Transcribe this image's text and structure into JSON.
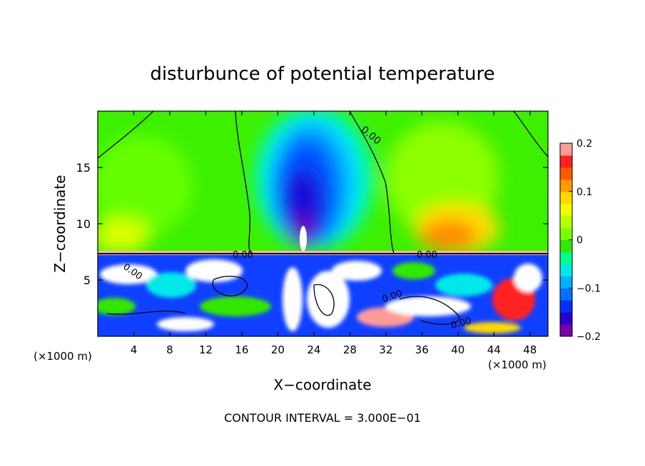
{
  "chart_data": {
    "type": "heatmap",
    "title": "disturbunce of potential temperature",
    "xlabel": "X−coordinate",
    "ylabel": "Z−coordinate",
    "x_unit_left": "(×1000 m)",
    "x_unit_right": "(×1000 m)",
    "xlim": [
      0,
      50
    ],
    "ylim": [
      0,
      20
    ],
    "x_ticks": [
      4,
      8,
      12,
      16,
      20,
      24,
      28,
      32,
      36,
      40,
      44,
      48
    ],
    "x_tick_labels": [
      "4",
      "8",
      "12",
      "16",
      "20",
      "24",
      "28",
      "32",
      "36",
      "40",
      "44",
      "48"
    ],
    "y_ticks": [
      5,
      10,
      15
    ],
    "y_tick_labels": [
      "5",
      "10",
      "15"
    ],
    "colorbar": {
      "range": [
        -0.2,
        0.2
      ],
      "ticks": [
        0.2,
        0.1,
        0,
        -0.1,
        -0.2
      ],
      "tick_labels": [
        "0.2",
        "0.1",
        "0",
        "−0.1",
        "−0.2"
      ],
      "colors": [
        "#7a00a8",
        "#2a00c8",
        "#0030ff",
        "#0070ff",
        "#00b0ff",
        "#00e8e8",
        "#00ff90",
        "#30e800",
        "#78ff00",
        "#b8ff00",
        "#f0ff00",
        "#ffd800",
        "#ff9a00",
        "#ff5a00",
        "#ff2020",
        "#ff9a9a"
      ]
    },
    "contour_labels": [
      "0.00",
      "0.00",
      "0.00",
      "0.00",
      "0.00",
      "0.00"
    ],
    "contour_interval_text": "CONTOUR INTERVAL = 3.000E−01"
  }
}
